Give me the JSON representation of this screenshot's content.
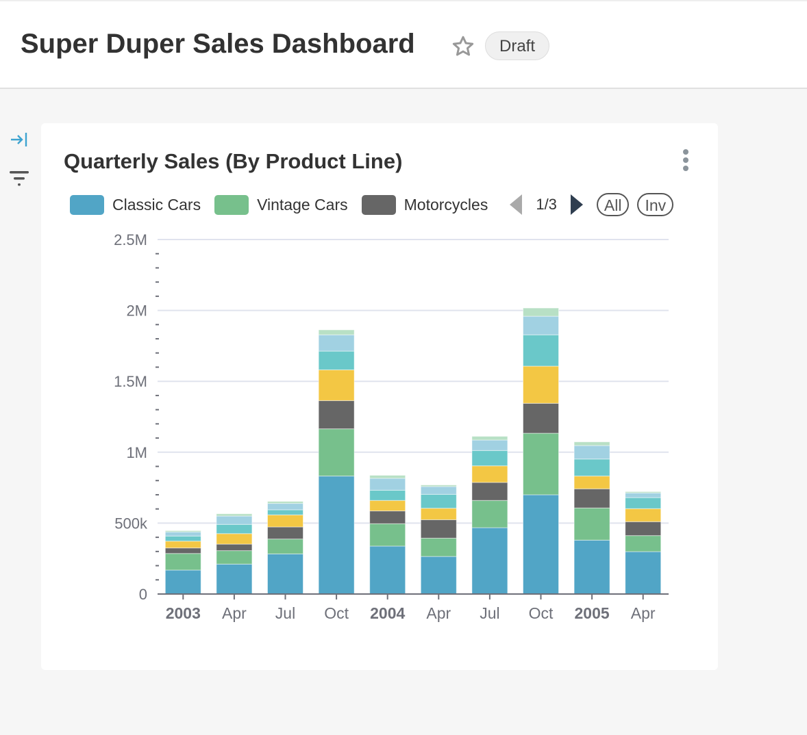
{
  "header": {
    "title": "Super Duper Sales Dashboard",
    "favorite_icon": "star-outline-icon",
    "status_badge": "Draft"
  },
  "sidebar": {
    "collapse_icon": "arrow-to-right-icon",
    "filter_icon": "filter-icon"
  },
  "chart_card": {
    "title": "Quarterly Sales (By Product Line)",
    "menu_icon": "vertical-dots-icon",
    "legend": {
      "items": [
        {
          "label": "Classic Cars",
          "color": "#51a5c6"
        },
        {
          "label": "Vintage Cars",
          "color": "#77c08c"
        },
        {
          "label": "Motorcycles",
          "color": "#666666"
        }
      ],
      "page": "1/3",
      "all_label": "All",
      "inv_label": "Inv"
    }
  },
  "chart_data": {
    "type": "bar",
    "stacked": true,
    "title": "Quarterly Sales (By Product Line)",
    "categories": [
      "2003",
      "Apr",
      "Jul",
      "Oct",
      "2004",
      "Apr",
      "Jul",
      "Oct",
      "2005",
      "Apr"
    ],
    "bold_categories": [
      "2003",
      "2004",
      "2005"
    ],
    "ylim": [
      0,
      2500000
    ],
    "yticks": [
      0,
      500000,
      1000000,
      1500000,
      2000000,
      2500000
    ],
    "ytick_labels": [
      "0",
      "500k",
      "1M",
      "1.5M",
      "2M",
      "2.5M"
    ],
    "grid": true,
    "legend_position": "top",
    "series": [
      {
        "name": "Classic Cars",
        "color": "#51a5c6",
        "values": [
          169000,
          211000,
          283000,
          832000,
          338000,
          265000,
          468000,
          700000,
          380000,
          299000
        ]
      },
      {
        "name": "Vintage Cars",
        "color": "#77c08c",
        "values": [
          117000,
          95000,
          105000,
          333000,
          158000,
          129000,
          192000,
          434000,
          227000,
          113000
        ]
      },
      {
        "name": "Motorcycles",
        "color": "#666666",
        "values": [
          39000,
          46000,
          85000,
          199000,
          90000,
          130000,
          127000,
          211000,
          135000,
          98000
        ]
      },
      {
        "color": "#f3c744",
        "values": [
          48000,
          74000,
          85000,
          217000,
          74000,
          81000,
          117000,
          262000,
          90000,
          92000
        ]
      },
      {
        "color": "#6ac8c9",
        "values": [
          36000,
          65000,
          36000,
          132000,
          72000,
          98000,
          108000,
          221000,
          120000,
          78000
        ]
      },
      {
        "color": "#a1d1e2",
        "values": [
          29000,
          59000,
          45000,
          115000,
          84000,
          55000,
          74000,
          131000,
          95000,
          33000
        ]
      },
      {
        "color": "#b8e0c5",
        "values": [
          9000,
          16000,
          14000,
          35000,
          21000,
          11000,
          26000,
          58000,
          26000,
          9000
        ]
      }
    ]
  }
}
